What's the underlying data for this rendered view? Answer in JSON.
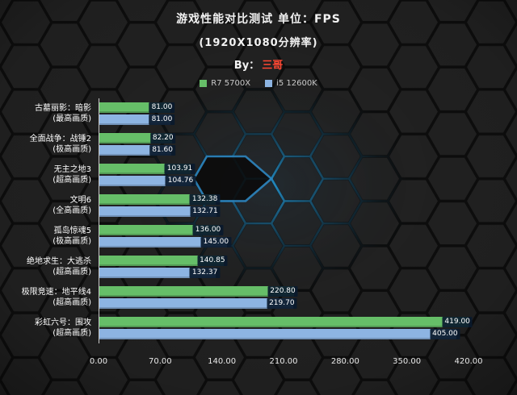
{
  "header": {
    "title": "游戏性能对比测试 单位：FPS",
    "subtitle": "(1920X1080分辨率)",
    "by_prefix": "By：",
    "by_name": "三哥"
  },
  "legend": [
    {
      "label": "R7 5700X",
      "color": "#66be68"
    },
    {
      "label": "i5 12600K",
      "color": "#8db4e2"
    }
  ],
  "chart_data": {
    "type": "bar",
    "orientation": "horizontal",
    "unit": "FPS",
    "title": "游戏性能对比测试 单位：FPS",
    "subtitle": "(1920X1080分辨率)",
    "legend_position": "top",
    "grid": false,
    "xlim": [
      0,
      420
    ],
    "x_ticks": [
      "0.00",
      "70.00",
      "140.00",
      "210.00",
      "280.00",
      "350.00",
      "420.00"
    ],
    "categories": [
      {
        "name": "古墓丽影：暗影",
        "quality": "(最高画质)"
      },
      {
        "name": "全面战争：战锤2",
        "quality": "(极高画质)"
      },
      {
        "name": "无主之地3",
        "quality": "(超高画质)"
      },
      {
        "name": "文明6",
        "quality": "(全高画质)"
      },
      {
        "name": "孤岛惊魂5",
        "quality": "(极高画质)"
      },
      {
        "name": "绝地求生：大逃杀",
        "quality": "(超高画质)"
      },
      {
        "name": "极限竞速：地平线4",
        "quality": "(超高画质)"
      },
      {
        "name": "彩虹六号：围攻",
        "quality": "(超高画质)"
      }
    ],
    "series": [
      {
        "name": "R7 5700X",
        "color": "#66be68",
        "values": [
          81.0,
          82.2,
          103.91,
          132.38,
          136.0,
          140.85,
          220.8,
          419.0
        ]
      },
      {
        "name": "i5 12600K",
        "color": "#8db4e2",
        "values": [
          81.0,
          81.6,
          104.76,
          132.71,
          145.0,
          132.37,
          219.7,
          405.0
        ]
      }
    ],
    "value_badge_color": "#0a1a2d",
    "accent_glow_color": "#2596d1"
  }
}
